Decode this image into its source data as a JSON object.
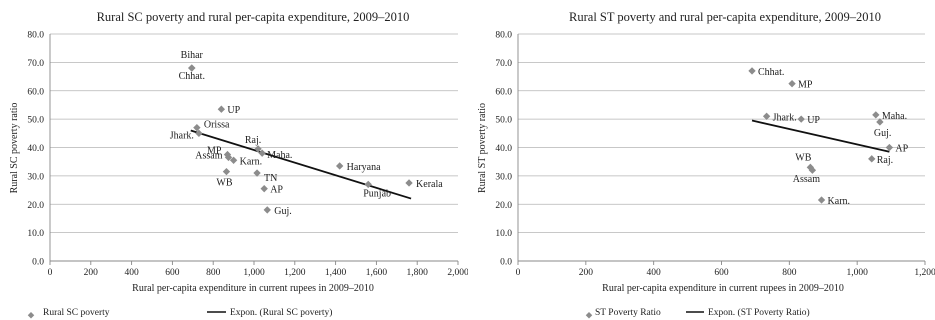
{
  "chart_data": [
    {
      "type": "scatter",
      "title": "Rural SC poverty and rural per-capita expenditure, 2009–2010",
      "xlabel": "Rural per-capita expenditure in current rupees in 2009–2010",
      "ylabel": "Rural SC poverty ratio",
      "xlim": [
        0,
        2000
      ],
      "ylim": [
        0,
        80
      ],
      "xticks": [
        0,
        200,
        400,
        600,
        800,
        1000,
        1200,
        1400,
        1600,
        1800,
        2000
      ],
      "xtick_labels": [
        "0",
        "200",
        "400",
        "600",
        "800",
        "1,000",
        "1,200",
        "1,400",
        "1,600",
        "1,800",
        "2,000"
      ],
      "yticks": [
        0,
        10,
        20,
        30,
        40,
        50,
        60,
        70,
        80
      ],
      "ytick_labels": [
        "0.0",
        "10.0",
        "20.0",
        "30.0",
        "40.0",
        "50.0",
        "60.0",
        "70.0",
        "80.0"
      ],
      "grid": "horizontal",
      "legend": "bottom-left",
      "marker_color": "#8c8c8c",
      "trend_color": "#111111",
      "series": [
        {
          "name": "Rural SC poverty",
          "points": [
            {
              "label": "Bihar",
              "x": 695,
              "y": 68.0
            },
            {
              "label": "Chhat.",
              "x": 695,
              "y": 68.0
            },
            {
              "label": "UP",
              "x": 840,
              "y": 53.5
            },
            {
              "label": "Orissa",
              "x": 720,
              "y": 47.0
            },
            {
              "label": "Jhark.",
              "x": 730,
              "y": 45.0
            },
            {
              "label": "MP",
              "x": 870,
              "y": 37.5
            },
            {
              "label": "Assam",
              "x": 875,
              "y": 36.5
            },
            {
              "label": "Karn.",
              "x": 900,
              "y": 35.5
            },
            {
              "label": "Raj.",
              "x": 1020,
              "y": 39.5
            },
            {
              "label": "Maha.",
              "x": 1040,
              "y": 38.0
            },
            {
              "label": "WB",
              "x": 865,
              "y": 31.5
            },
            {
              "label": "TN",
              "x": 1015,
              "y": 31.0
            },
            {
              "label": "AP",
              "x": 1050,
              "y": 25.5
            },
            {
              "label": "Guj.",
              "x": 1065,
              "y": 18.0
            },
            {
              "label": "Haryana",
              "x": 1420,
              "y": 33.5
            },
            {
              "label": "Punjab",
              "x": 1560,
              "y": 27.0
            },
            {
              "label": "Kerala",
              "x": 1760,
              "y": 27.5
            }
          ]
        },
        {
          "name": "Expon. (Rural SC poverty)",
          "trend": {
            "x": [
              690,
              1770
            ],
            "y": [
              46.0,
              22.0
            ]
          }
        }
      ]
    },
    {
      "type": "scatter",
      "title": "Rural ST poverty and rural per-capita expenditure, 2009–2010",
      "xlabel": "Rural per-capita expenditure in current rupees in 2009–2010",
      "ylabel": "Rural ST poverty ratio",
      "xlim": [
        0,
        1200
      ],
      "ylim": [
        0,
        80
      ],
      "xticks": [
        0,
        200,
        400,
        600,
        800,
        1000,
        1200
      ],
      "xtick_labels": [
        "0",
        "200",
        "400",
        "600",
        "800",
        "1,000",
        "1,200"
      ],
      "yticks": [
        0,
        10,
        20,
        30,
        40,
        50,
        60,
        70,
        80
      ],
      "ytick_labels": [
        "0.0",
        "10.0",
        "20.0",
        "30.0",
        "40.0",
        "50.0",
        "60.0",
        "70.0",
        "80.0"
      ],
      "grid": "horizontal",
      "legend": "bottom-left",
      "marker_color": "#8c8c8c",
      "trend_color": "#111111",
      "series": [
        {
          "name": "ST Poverty Ratio",
          "points": [
            {
              "label": "Chhat.",
              "x": 690,
              "y": 67.0
            },
            {
              "label": "MP",
              "x": 808,
              "y": 62.5
            },
            {
              "label": "Jhark.",
              "x": 733,
              "y": 51.0
            },
            {
              "label": "UP",
              "x": 835,
              "y": 50.0
            },
            {
              "label": "Maha.",
              "x": 1055,
              "y": 51.5
            },
            {
              "label": "Guj.",
              "x": 1067,
              "y": 49.0
            },
            {
              "label": "AP",
              "x": 1095,
              "y": 40.0
            },
            {
              "label": "Raj.",
              "x": 1043,
              "y": 36.0
            },
            {
              "label": "WB",
              "x": 862,
              "y": 33.0
            },
            {
              "label": "Assam",
              "x": 868,
              "y": 32.0
            },
            {
              "label": "Karn.",
              "x": 895,
              "y": 21.5
            }
          ]
        },
        {
          "name": "Expon. (ST Poverty Ratio)",
          "trend": {
            "x": [
              690,
              1095
            ],
            "y": [
              49.5,
              38.5
            ]
          }
        }
      ]
    }
  ]
}
